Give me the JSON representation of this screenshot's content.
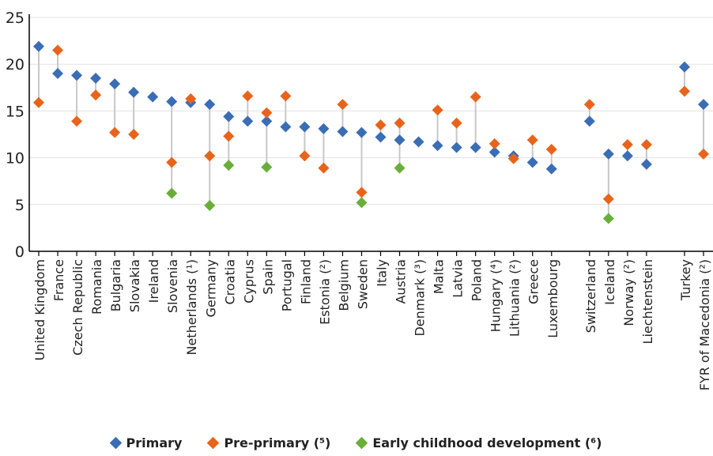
{
  "chart_data": {
    "type": "scatter",
    "ylim": [
      0,
      25
    ],
    "yticks": [
      0,
      5,
      10,
      15,
      20,
      25
    ],
    "grid": true,
    "legend_position": "bottom",
    "colors": {
      "primary": "#3B6DB5",
      "pre_primary": "#E8641B",
      "ecd": "#6AAE3A",
      "connector": "#C8C8C8",
      "grid": "#E3E3E3",
      "axis": "#000000"
    },
    "categories": [
      "United Kingdom",
      "France",
      "Czech Republic",
      "Romania",
      "Bulgaria",
      "Slovakia",
      "Ireland",
      "Slovenia",
      "Netherlands (¹)",
      "Germany",
      "Croatia",
      "Cyprus",
      "Spain",
      "Portugal",
      "Finland",
      "Estonia (²)",
      "Belgium",
      "Sweden",
      "Italy",
      "Austria",
      "Denmark (³)",
      "Malta",
      "Latvia",
      "Poland",
      "Hungary (⁴)",
      "Lithuania (²)",
      "Greece",
      "Luxembourg",
      "",
      "Switzerland",
      "Iceland",
      "Norway (²)",
      "Liechtenstein",
      "",
      "Turkey",
      "FYR of Macedonia (²)"
    ],
    "series": [
      {
        "name": "Primary",
        "values": [
          21.9,
          19.0,
          18.8,
          18.5,
          17.9,
          17.0,
          16.5,
          16.0,
          15.9,
          15.7,
          14.4,
          13.9,
          13.9,
          13.3,
          13.3,
          13.1,
          12.8,
          12.7,
          12.2,
          11.9,
          11.7,
          11.3,
          11.1,
          11.1,
          10.6,
          10.2,
          9.5,
          8.8,
          null,
          13.9,
          10.4,
          10.2,
          9.3,
          null,
          19.7,
          15.7
        ]
      },
      {
        "name": "Pre-primary (⁵)",
        "values": [
          15.9,
          21.5,
          13.9,
          16.7,
          12.7,
          12.5,
          null,
          9.5,
          16.3,
          10.2,
          12.3,
          16.6,
          14.8,
          16.6,
          10.2,
          8.9,
          15.7,
          6.3,
          13.5,
          13.7,
          null,
          15.1,
          13.7,
          16.5,
          11.5,
          9.9,
          11.9,
          10.9,
          null,
          15.7,
          5.6,
          11.4,
          11.4,
          null,
          17.1,
          10.4
        ]
      },
      {
        "name": "Early childhood development (⁶)",
        "values": [
          null,
          null,
          null,
          null,
          null,
          null,
          null,
          6.2,
          null,
          4.9,
          9.2,
          null,
          9.0,
          null,
          null,
          null,
          null,
          5.2,
          null,
          8.9,
          null,
          null,
          null,
          null,
          null,
          null,
          null,
          null,
          null,
          null,
          3.5,
          null,
          null,
          null,
          null,
          null
        ]
      }
    ]
  },
  "legend": [
    {
      "label": "Primary",
      "color": "#3B6DB5"
    },
    {
      "label": "Pre-primary (⁵)",
      "color": "#E8641B"
    },
    {
      "label": "Early childhood development (⁶)",
      "color": "#6AAE3A"
    }
  ]
}
